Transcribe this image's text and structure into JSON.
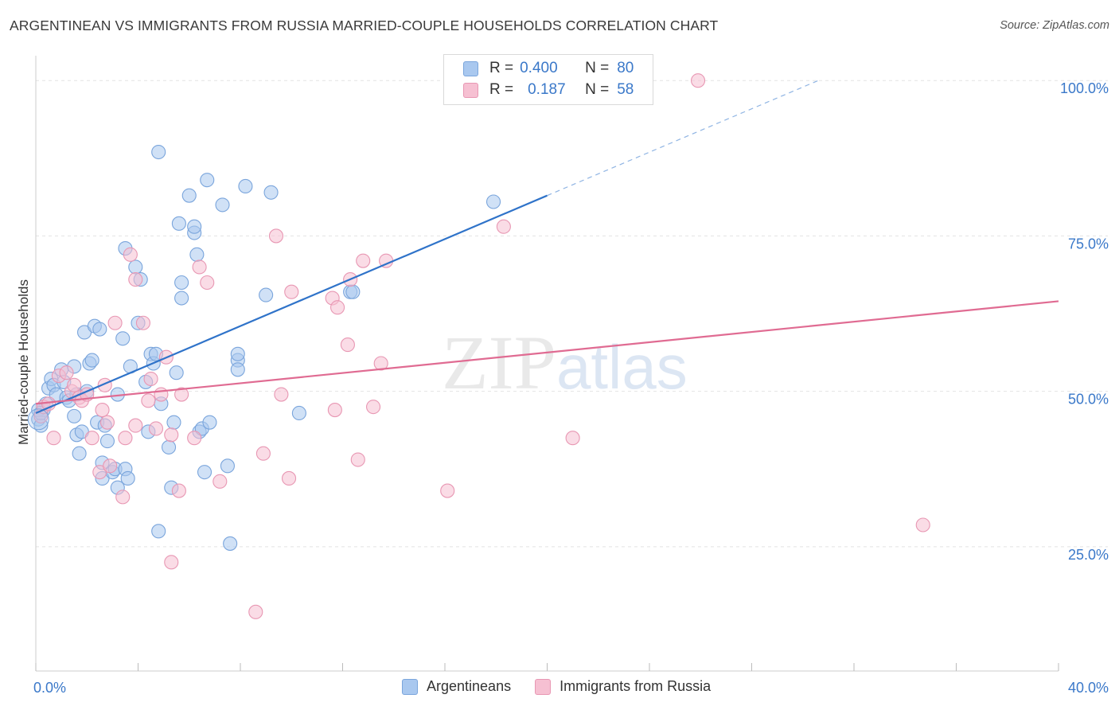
{
  "title": "ARGENTINEAN VS IMMIGRANTS FROM RUSSIA MARRIED-COUPLE HOUSEHOLDS CORRELATION CHART",
  "source": "Source: ZipAtlas.com",
  "watermark": {
    "zip": "ZIP",
    "atlas": "atlas"
  },
  "legend_top": [
    {
      "r_label": "R = ",
      "r_value": "0.400",
      "n_label": "N = ",
      "n_value": "80",
      "color": "#a9c8ef",
      "border": "#7aa5dc"
    },
    {
      "r_label": "R = ",
      "r_value": "0.187",
      "n_label": "N = ",
      "n_value": "58",
      "color": "#f6c0d2",
      "border": "#e897b3"
    }
  ],
  "chart_data": {
    "type": "scatter",
    "title": "ARGENTINEAN VS IMMIGRANTS FROM RUSSIA MARRIED-COUPLE HOUSEHOLDS CORRELATION CHART",
    "xlabel": "",
    "ylabel": "Married-couple Households",
    "xlim": [
      0,
      40
    ],
    "ylim": [
      5,
      104
    ],
    "x_tick_labels": [
      "0.0%",
      "40.0%"
    ],
    "y_ticks": [
      25,
      50,
      75,
      100
    ],
    "y_tick_labels": [
      "25.0%",
      "50.0%",
      "75.0%",
      "100.0%"
    ],
    "grid": true,
    "legend_position": "bottom",
    "series": [
      {
        "name": "Argentineans",
        "color": "#7aa5dc",
        "fill": "#a9c8ef",
        "line_color": "#2f73c9",
        "trend": {
          "x0": 0,
          "y0": 46.5,
          "x1": 20,
          "y1": 81.5,
          "dash_to_x": 30.6,
          "dash_to_y": 100
        },
        "points": [
          [
            0.1,
            45.5
          ],
          [
            0.2,
            44.5
          ],
          [
            0.3,
            47
          ],
          [
            0.4,
            48
          ],
          [
            0.5,
            50.5
          ],
          [
            0.6,
            52
          ],
          [
            0.7,
            51
          ],
          [
            0.8,
            49.5
          ],
          [
            1.0,
            53.5
          ],
          [
            1.1,
            51.5
          ],
          [
            1.2,
            49
          ],
          [
            1.3,
            48.5
          ],
          [
            1.5,
            54
          ],
          [
            1.6,
            49.5
          ],
          [
            1.5,
            46
          ],
          [
            1.6,
            43
          ],
          [
            1.7,
            40
          ],
          [
            1.8,
            43.5
          ],
          [
            1.9,
            59.5
          ],
          [
            2.0,
            50
          ],
          [
            2.1,
            54.5
          ],
          [
            2.2,
            55
          ],
          [
            2.3,
            60.5
          ],
          [
            2.4,
            45
          ],
          [
            2.5,
            60
          ],
          [
            2.6,
            36
          ],
          [
            2.6,
            38.5
          ],
          [
            2.7,
            44.5
          ],
          [
            2.8,
            42
          ],
          [
            3.0,
            37
          ],
          [
            3.1,
            37.5
          ],
          [
            3.2,
            34.5
          ],
          [
            3.2,
            49.5
          ],
          [
            3.4,
            58.5
          ],
          [
            3.5,
            73
          ],
          [
            3.5,
            37.5
          ],
          [
            3.6,
            36
          ],
          [
            3.7,
            54
          ],
          [
            3.9,
            70
          ],
          [
            4.0,
            61
          ],
          [
            4.1,
            68
          ],
          [
            4.3,
            51.5
          ],
          [
            4.4,
            43.5
          ],
          [
            4.5,
            56
          ],
          [
            4.6,
            54.5
          ],
          [
            4.7,
            56
          ],
          [
            4.8,
            88.5
          ],
          [
            4.9,
            48
          ],
          [
            4.8,
            27.5
          ],
          [
            5.2,
            41
          ],
          [
            5.3,
            34.5
          ],
          [
            5.4,
            45
          ],
          [
            5.5,
            53
          ],
          [
            5.6,
            77
          ],
          [
            5.7,
            65
          ],
          [
            5.7,
            67.5
          ],
          [
            6.0,
            81.5
          ],
          [
            6.2,
            75.5
          ],
          [
            6.2,
            76.5
          ],
          [
            6.3,
            72
          ],
          [
            6.4,
            43.5
          ],
          [
            6.5,
            44
          ],
          [
            6.6,
            37
          ],
          [
            6.7,
            84
          ],
          [
            6.8,
            45
          ],
          [
            7.3,
            80
          ],
          [
            7.5,
            38
          ],
          [
            7.6,
            25.5
          ],
          [
            7.9,
            55
          ],
          [
            7.9,
            53.5
          ],
          [
            7.9,
            56
          ],
          [
            8.2,
            83
          ],
          [
            9.0,
            65.5
          ],
          [
            9.2,
            82
          ],
          [
            10.3,
            46.5
          ],
          [
            12.3,
            66
          ],
          [
            12.4,
            66
          ],
          [
            17.9,
            80.5
          ],
          [
            0.1,
            47
          ],
          [
            0.2,
            46.5
          ]
        ]
      },
      {
        "name": "Immigrants from Russia",
        "color": "#e897b3",
        "fill": "#f6c0d2",
        "line_color": "#e06b92",
        "trend": {
          "x0": 0,
          "y0": 48,
          "x1": 40,
          "y1": 64.5
        },
        "points": [
          [
            0.2,
            46
          ],
          [
            0.3,
            47.5
          ],
          [
            0.5,
            48
          ],
          [
            0.7,
            42.5
          ],
          [
            0.9,
            52.5
          ],
          [
            1.2,
            53
          ],
          [
            1.4,
            50
          ],
          [
            1.7,
            49
          ],
          [
            1.8,
            48.5
          ],
          [
            2.0,
            49.5
          ],
          [
            2.2,
            42.5
          ],
          [
            2.5,
            37
          ],
          [
            2.7,
            51
          ],
          [
            2.8,
            45
          ],
          [
            2.9,
            38
          ],
          [
            3.1,
            61
          ],
          [
            3.4,
            33
          ],
          [
            3.5,
            42.5
          ],
          [
            3.7,
            72
          ],
          [
            3.9,
            68
          ],
          [
            3.9,
            44.5
          ],
          [
            4.2,
            61
          ],
          [
            4.4,
            48.5
          ],
          [
            4.5,
            52
          ],
          [
            4.7,
            44
          ],
          [
            4.9,
            49.5
          ],
          [
            5.1,
            55.5
          ],
          [
            5.3,
            43
          ],
          [
            5.3,
            22.5
          ],
          [
            5.6,
            34
          ],
          [
            5.7,
            49.5
          ],
          [
            6.2,
            42.5
          ],
          [
            6.4,
            70
          ],
          [
            6.7,
            67.5
          ],
          [
            7.2,
            35.5
          ],
          [
            8.6,
            14.5
          ],
          [
            8.9,
            40
          ],
          [
            9.4,
            75
          ],
          [
            9.6,
            49.5
          ],
          [
            9.9,
            36
          ],
          [
            10.0,
            66
          ],
          [
            11.6,
            65
          ],
          [
            11.7,
            47
          ],
          [
            11.8,
            63.5
          ],
          [
            12.2,
            57.5
          ],
          [
            12.3,
            68
          ],
          [
            12.6,
            39
          ],
          [
            12.8,
            71
          ],
          [
            13.2,
            47.5
          ],
          [
            13.5,
            54.5
          ],
          [
            13.7,
            71
          ],
          [
            16.1,
            34
          ],
          [
            18.3,
            76.5
          ],
          [
            21.0,
            42.5
          ],
          [
            25.9,
            100
          ],
          [
            34.7,
            28.5
          ],
          [
            1.5,
            51
          ],
          [
            2.6,
            47
          ]
        ]
      }
    ]
  }
}
